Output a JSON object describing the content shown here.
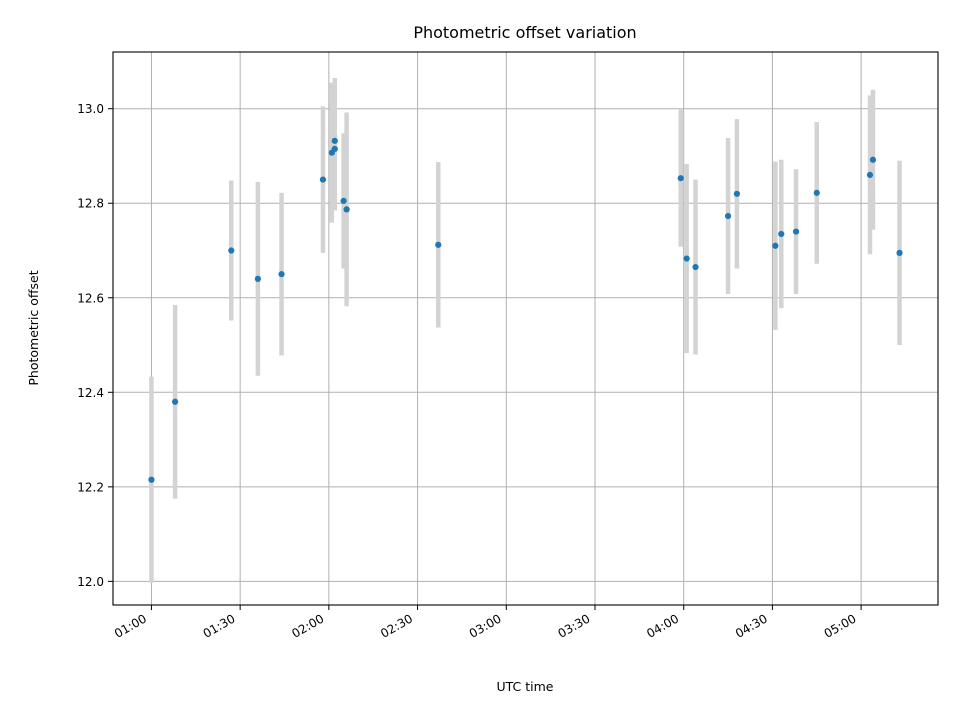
{
  "chart_data": {
    "type": "scatter",
    "title": "Photometric offset variation",
    "xlabel": "UTC time",
    "ylabel": "Photometric offset",
    "x_unit": "UTC",
    "xlim": [
      "00:47",
      "05:26"
    ],
    "ylim": [
      11.95,
      13.12
    ],
    "grid": true,
    "x_ticks": [
      "01:00",
      "01:30",
      "02:00",
      "02:30",
      "03:00",
      "03:30",
      "04:00",
      "04:30",
      "05:00"
    ],
    "y_ticks": [
      12.0,
      12.2,
      12.4,
      12.6,
      12.8,
      13.0
    ],
    "y_tick_labels": [
      "12.0",
      "12.2",
      "12.4",
      "12.6",
      "12.8",
      "13.0"
    ],
    "series": [
      {
        "marker_color": "#1f77b4",
        "errorbar_color": "#d3d3d3",
        "points": [
          {
            "x": "01:00",
            "y": 12.215,
            "yerr": 0.218
          },
          {
            "x": "01:08",
            "y": 12.38,
            "yerr": 0.205
          },
          {
            "x": "01:27",
            "y": 12.7,
            "yerr": 0.148
          },
          {
            "x": "01:36",
            "y": 12.64,
            "yerr": 0.205
          },
          {
            "x": "01:44",
            "y": 12.65,
            "yerr": 0.172
          },
          {
            "x": "01:58",
            "y": 12.85,
            "yerr": 0.155
          },
          {
            "x": "02:01",
            "y": 12.907,
            "yerr": 0.148
          },
          {
            "x": "02:02",
            "y": 12.915,
            "yerr": 0.13
          },
          {
            "x": "02:02",
            "y": 12.932,
            "yerr": 0.133
          },
          {
            "x": "02:05",
            "y": 12.805,
            "yerr": 0.143
          },
          {
            "x": "02:06",
            "y": 12.787,
            "yerr": 0.205
          },
          {
            "x": "02:37",
            "y": 12.712,
            "yerr": 0.175
          },
          {
            "x": "03:59",
            "y": 12.853,
            "yerr": 0.145
          },
          {
            "x": "04:01",
            "y": 12.683,
            "yerr": 0.2
          },
          {
            "x": "04:04",
            "y": 12.665,
            "yerr": 0.185
          },
          {
            "x": "04:15",
            "y": 12.773,
            "yerr": 0.165
          },
          {
            "x": "04:18",
            "y": 12.82,
            "yerr": 0.158
          },
          {
            "x": "04:31",
            "y": 12.71,
            "yerr": 0.178
          },
          {
            "x": "04:33",
            "y": 12.735,
            "yerr": 0.157
          },
          {
            "x": "04:38",
            "y": 12.74,
            "yerr": 0.132
          },
          {
            "x": "04:45",
            "y": 12.822,
            "yerr": 0.15
          },
          {
            "x": "05:03",
            "y": 12.86,
            "yerr": 0.168
          },
          {
            "x": "05:04",
            "y": 12.892,
            "yerr": 0.148
          },
          {
            "x": "05:13",
            "y": 12.695,
            "yerr": 0.195
          }
        ]
      }
    ]
  }
}
